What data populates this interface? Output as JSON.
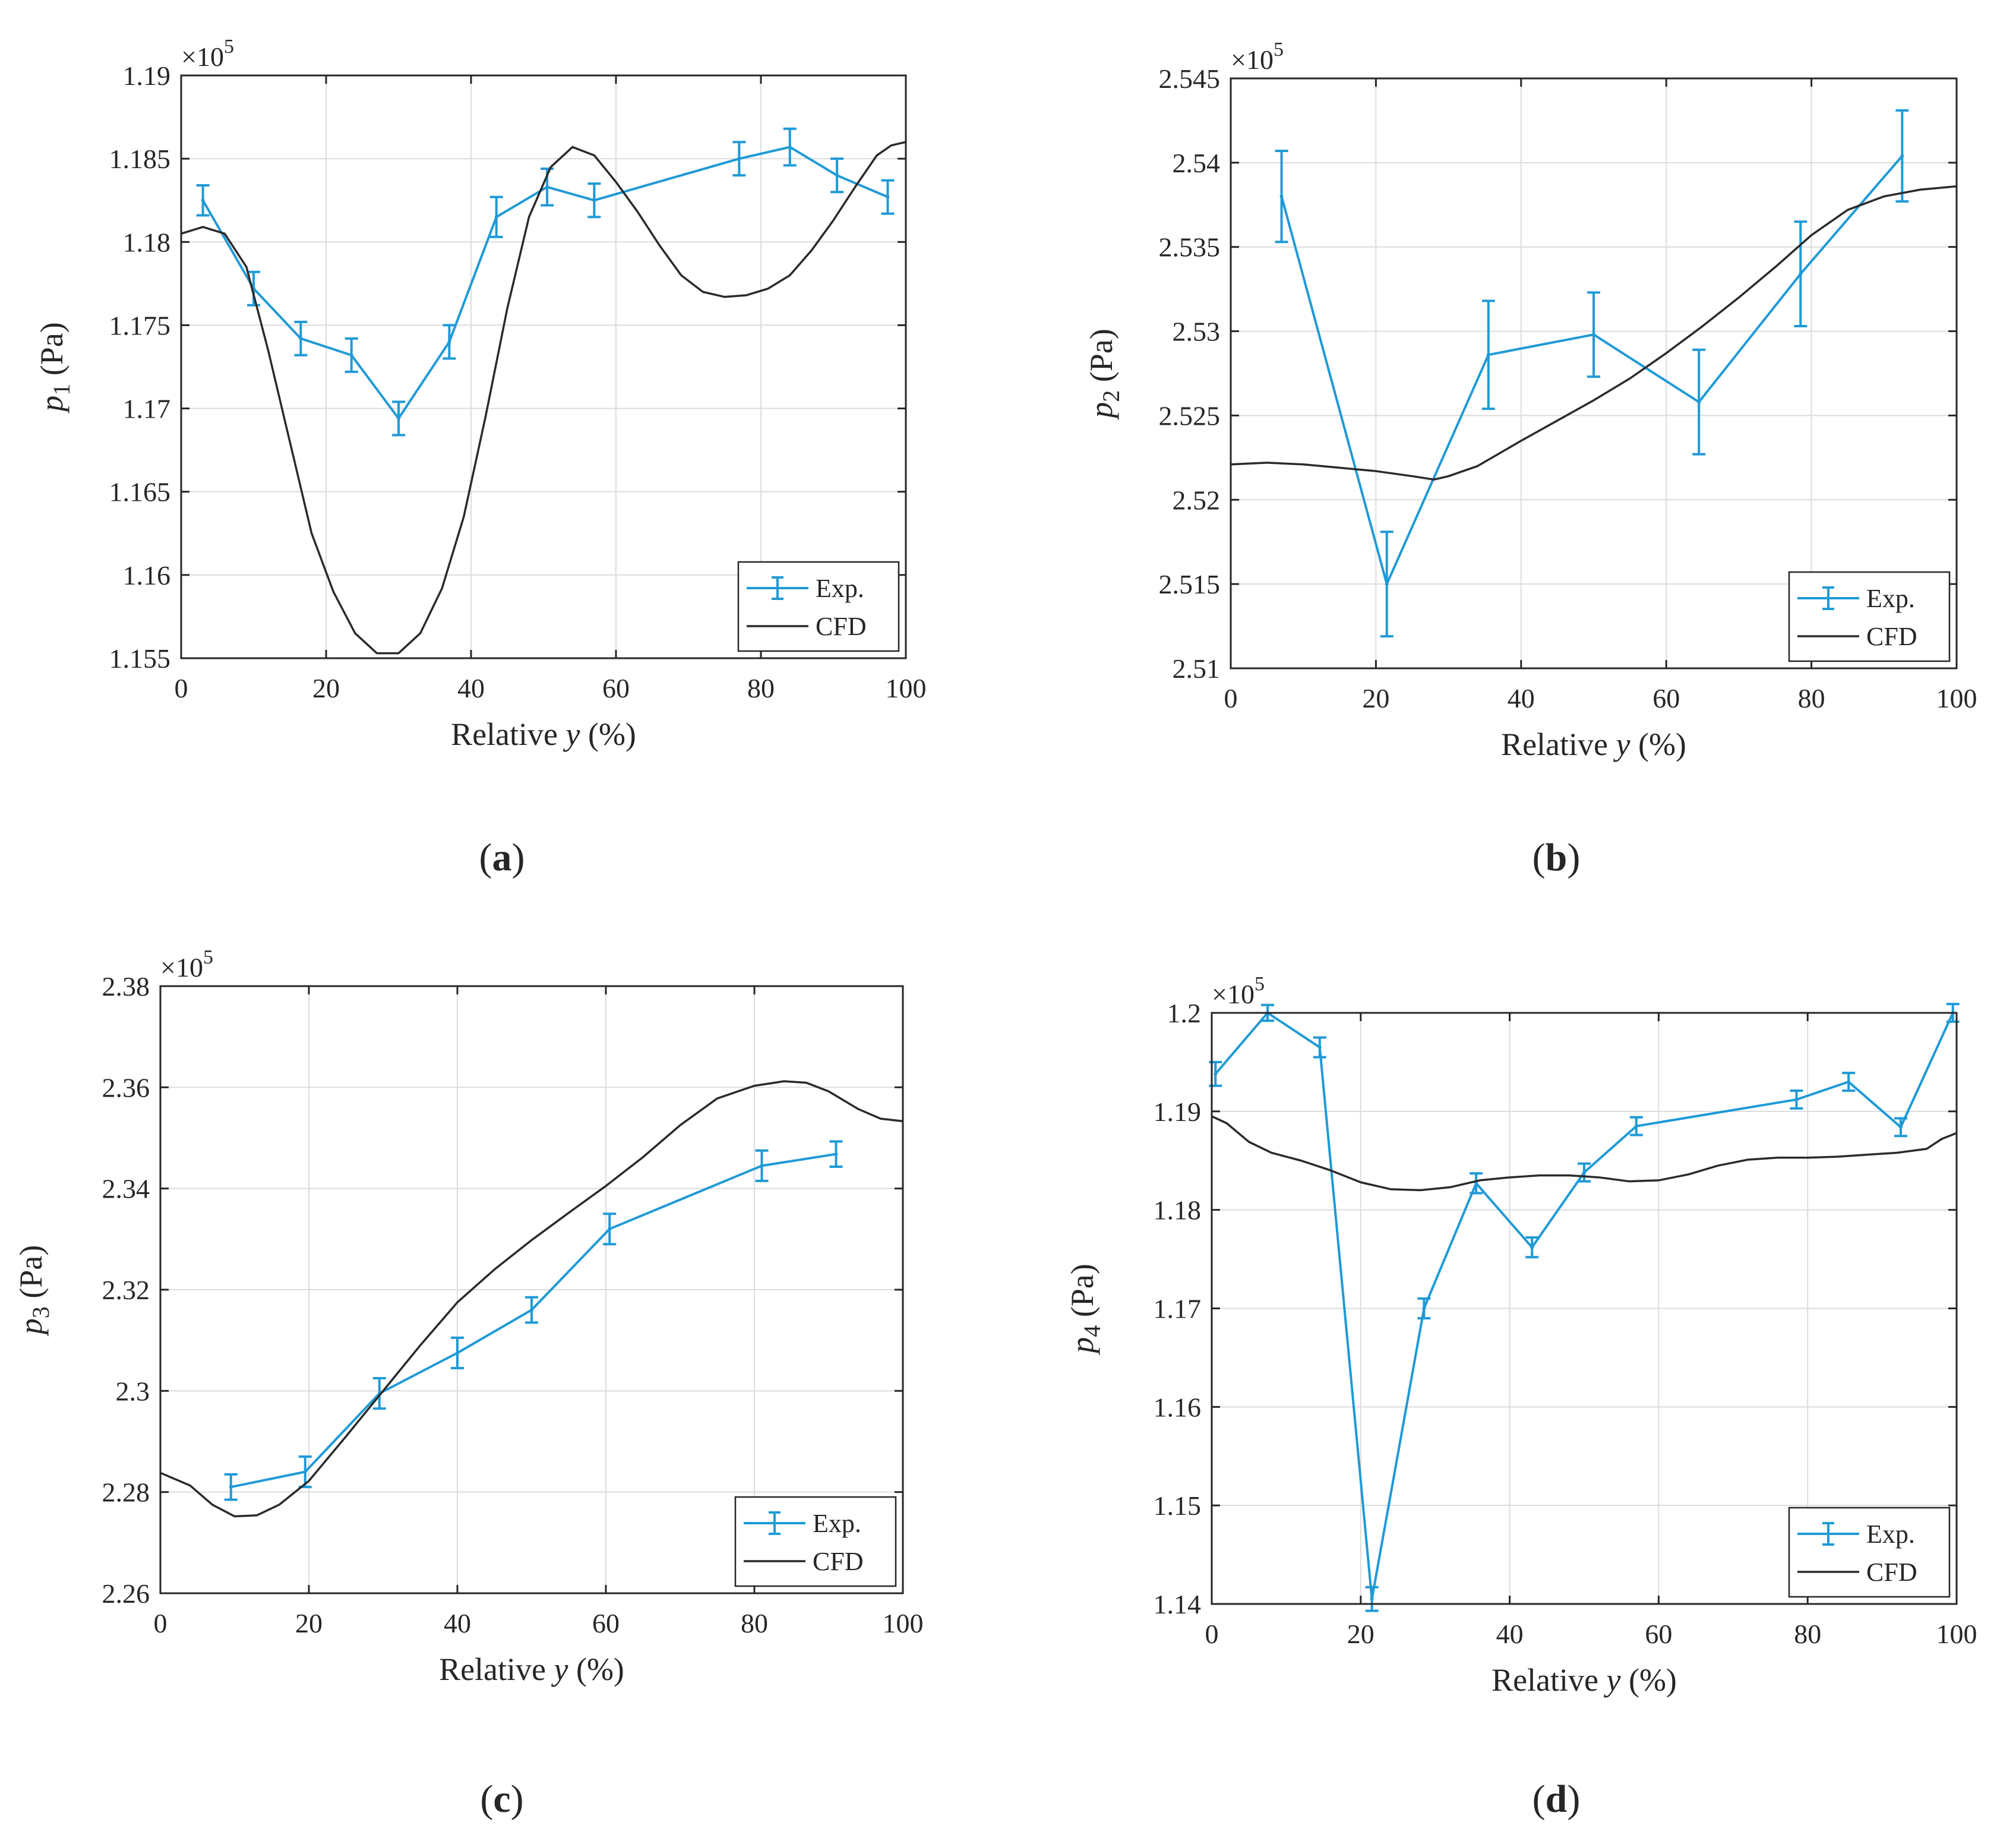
{
  "figure_title": "",
  "chart_data": [
    {
      "id": "a",
      "type": "line",
      "caption": "(a)",
      "caption_letter": "a",
      "multiplier_base": "×10",
      "multiplier_exp": "5",
      "scale": 100000,
      "xlabel_text": "Relative ",
      "xlabel_var": "y",
      "xlabel_unit": " (%)",
      "ylabel_var": "p",
      "ylabel_sub": "1",
      "ylabel_unit": " (Pa)",
      "xlim": [
        0,
        100
      ],
      "ylim": [
        1.155,
        1.19
      ],
      "xticks": [
        0,
        20,
        40,
        60,
        80,
        100
      ],
      "yticks": [
        1.155,
        1.16,
        1.165,
        1.17,
        1.175,
        1.18,
        1.185,
        1.19
      ],
      "ytick_labels": [
        "1.155",
        "1.16",
        "1.165",
        "1.17",
        "1.175",
        "1.18",
        "1.185",
        "1.19"
      ],
      "grid": true,
      "legend_position": "bottom-right",
      "series": [
        {
          "name": "Exp.",
          "color": "#1f9ad6",
          "kind": "errorbar",
          "x": [
            3,
            10,
            16.5,
            23.5,
            30,
            37,
            43.5,
            50.5,
            57,
            77,
            84,
            90.5,
            97.5
          ],
          "y": [
            1.1825,
            1.1772,
            1.1742,
            1.1732,
            1.1694,
            1.174,
            1.1815,
            1.1833,
            1.1825,
            1.185,
            1.1857,
            1.184,
            1.1827
          ],
          "err": [
            0.0009,
            0.001,
            0.001,
            0.001,
            0.001,
            0.001,
            0.0012,
            0.0011,
            0.001,
            0.001,
            0.0011,
            0.001,
            0.001
          ]
        },
        {
          "name": "CFD",
          "color": "#2a2a2a",
          "kind": "line",
          "x": [
            0,
            3,
            6,
            9,
            12,
            15,
            18,
            21,
            24,
            27,
            30,
            33,
            36,
            39,
            42,
            45,
            48,
            51,
            54,
            57,
            60,
            63,
            66,
            69,
            72,
            75,
            78,
            81,
            84,
            87,
            90,
            93,
            96,
            98,
            100
          ],
          "y": [
            1.1805,
            1.1809,
            1.1805,
            1.1785,
            1.1735,
            1.168,
            1.1625,
            1.159,
            1.1565,
            1.1553,
            1.1553,
            1.1565,
            1.1592,
            1.1635,
            1.1695,
            1.176,
            1.1815,
            1.1845,
            1.1857,
            1.1852,
            1.1836,
            1.1818,
            1.1798,
            1.178,
            1.177,
            1.1767,
            1.1768,
            1.1772,
            1.178,
            1.1795,
            1.1813,
            1.1833,
            1.1852,
            1.1858,
            1.186
          ]
        }
      ]
    },
    {
      "id": "b",
      "type": "line",
      "caption": "(b)",
      "caption_letter": "b",
      "multiplier_base": "×10",
      "multiplier_exp": "5",
      "scale": 100000,
      "xlabel_text": "Relative ",
      "xlabel_var": "y",
      "xlabel_unit": " (%)",
      "ylabel_var": "p",
      "ylabel_sub": "2",
      "ylabel_unit": " (Pa)",
      "xlim": [
        0,
        100
      ],
      "ylim": [
        2.51,
        2.545
      ],
      "xticks": [
        0,
        20,
        40,
        60,
        80,
        100
      ],
      "yticks": [
        2.51,
        2.515,
        2.52,
        2.525,
        2.53,
        2.535,
        2.54,
        2.545
      ],
      "ytick_labels": [
        "2.51",
        "2.515",
        "2.52",
        "2.525",
        "2.53",
        "2.535",
        "2.54",
        "2.545"
      ],
      "grid": true,
      "legend_position": "bottom-right",
      "series": [
        {
          "name": "Exp.",
          "color": "#1f9ad6",
          "kind": "errorbar",
          "x": [
            7,
            21.5,
            35.5,
            50,
            64.5,
            78.5,
            92.5
          ],
          "y": [
            2.538,
            2.515,
            2.5286,
            2.5298,
            2.5258,
            2.5334,
            2.5404
          ],
          "err": [
            0.0027,
            0.0031,
            0.0032,
            0.0025,
            0.0031,
            0.0031,
            0.0027
          ]
        },
        {
          "name": "CFD",
          "color": "#2a2a2a",
          "kind": "line",
          "x": [
            0,
            5,
            10,
            15,
            20,
            25,
            28,
            30,
            34,
            40,
            45,
            50,
            55,
            60,
            65,
            70,
            75,
            80,
            85,
            90,
            95,
            100
          ],
          "y": [
            2.5221,
            2.5222,
            2.5221,
            2.5219,
            2.5217,
            2.5214,
            2.5212,
            2.5214,
            2.522,
            2.5235,
            2.5247,
            2.5259,
            2.5272,
            2.5287,
            2.5303,
            2.532,
            2.5338,
            2.5357,
            2.5372,
            2.538,
            2.5384,
            2.5386
          ]
        }
      ]
    },
    {
      "id": "c",
      "type": "line",
      "caption": "(c)",
      "caption_letter": "c",
      "multiplier_base": "×10",
      "multiplier_exp": "5",
      "scale": 100000,
      "xlabel_text": "Relative ",
      "xlabel_var": "y",
      "xlabel_unit": " (%)",
      "ylabel_var": "p",
      "ylabel_sub": "3",
      "ylabel_unit": " (Pa)",
      "xlim": [
        0,
        100
      ],
      "ylim": [
        2.26,
        2.38
      ],
      "xticks": [
        0,
        20,
        40,
        60,
        80,
        100
      ],
      "yticks": [
        2.26,
        2.28,
        2.3,
        2.32,
        2.34,
        2.36,
        2.38
      ],
      "ytick_labels": [
        "2.26",
        "2.28",
        "2.3",
        "2.32",
        "2.34",
        "2.36",
        "2.38"
      ],
      "grid": true,
      "legend_position": "bottom-right",
      "series": [
        {
          "name": "Exp.",
          "color": "#1f9ad6",
          "kind": "errorbar",
          "x": [
            9.5,
            19.5,
            29.5,
            40,
            50,
            60.5,
            81,
            91
          ],
          "y": [
            2.281,
            2.284,
            2.2995,
            2.3075,
            2.316,
            2.332,
            2.3445,
            2.3468
          ],
          "err": [
            0.0025,
            0.003,
            0.003,
            0.003,
            0.0025,
            0.003,
            0.003,
            0.0025
          ]
        },
        {
          "name": "CFD",
          "color": "#2a2a2a",
          "kind": "line",
          "x": [
            0,
            4,
            7,
            10,
            13,
            16,
            20,
            25,
            30,
            35,
            40,
            45,
            50,
            55,
            60,
            65,
            70,
            75,
            80,
            84,
            87,
            90,
            94,
            97,
            100
          ],
          "y": [
            2.2838,
            2.2813,
            2.2775,
            2.2752,
            2.2754,
            2.2775,
            2.2822,
            2.291,
            2.3,
            2.309,
            2.3175,
            2.324,
            2.3298,
            2.3352,
            2.3405,
            2.3462,
            2.3525,
            2.3578,
            2.3603,
            2.3612,
            2.3609,
            2.3592,
            2.3557,
            2.3538,
            2.3533
          ]
        }
      ]
    },
    {
      "id": "d",
      "type": "line",
      "caption": "(d)",
      "caption_letter": "d",
      "multiplier_base": "×10",
      "multiplier_exp": "5",
      "scale": 100000,
      "xlabel_text": "Relative ",
      "xlabel_var": "y",
      "xlabel_unit": " (%)",
      "ylabel_var": "p",
      "ylabel_sub": "4",
      "ylabel_unit": " (Pa)",
      "xlim": [
        0,
        100
      ],
      "ylim": [
        1.14,
        1.2
      ],
      "xticks": [
        0,
        20,
        40,
        60,
        80,
        100
      ],
      "yticks": [
        1.14,
        1.15,
        1.16,
        1.17,
        1.18,
        1.19,
        1.2
      ],
      "ytick_labels": [
        "1.14",
        "1.15",
        "1.16",
        "1.17",
        "1.18",
        "1.19",
        "1.2"
      ],
      "grid": true,
      "legend_position": "bottom-right",
      "series": [
        {
          "name": "Exp.",
          "color": "#1f9ad6",
          "kind": "errorbar",
          "x": [
            0.5,
            7.5,
            14.5,
            21.5,
            28.5,
            35.5,
            43,
            50,
            57,
            78.5,
            85.5,
            92.5,
            99.5
          ],
          "y": [
            1.1938,
            1.2,
            1.1965,
            1.1405,
            1.17,
            1.1827,
            1.1762,
            1.1838,
            1.1885,
            1.1912,
            1.193,
            1.1884,
            1.2
          ],
          "err": [
            0.0012,
            0.0008,
            0.001,
            0.0012,
            0.001,
            0.001,
            0.001,
            0.0009,
            0.0009,
            0.0009,
            0.0009,
            0.0009,
            0.0009
          ]
        },
        {
          "name": "CFD",
          "color": "#2a2a2a",
          "kind": "line",
          "x": [
            0,
            2,
            5,
            8,
            12,
            16,
            20,
            24,
            28,
            32,
            36,
            40,
            44,
            48,
            52,
            56,
            60,
            64,
            68,
            72,
            76,
            80,
            84,
            88,
            92,
            96,
            98,
            100
          ],
          "y": [
            1.1895,
            1.1888,
            1.1869,
            1.1858,
            1.185,
            1.184,
            1.1828,
            1.1821,
            1.182,
            1.1823,
            1.183,
            1.1833,
            1.1835,
            1.1835,
            1.1833,
            1.1829,
            1.183,
            1.1836,
            1.1845,
            1.1851,
            1.1853,
            1.1853,
            1.1854,
            1.1856,
            1.1858,
            1.1862,
            1.1872,
            1.1878
          ]
        }
      ]
    }
  ]
}
